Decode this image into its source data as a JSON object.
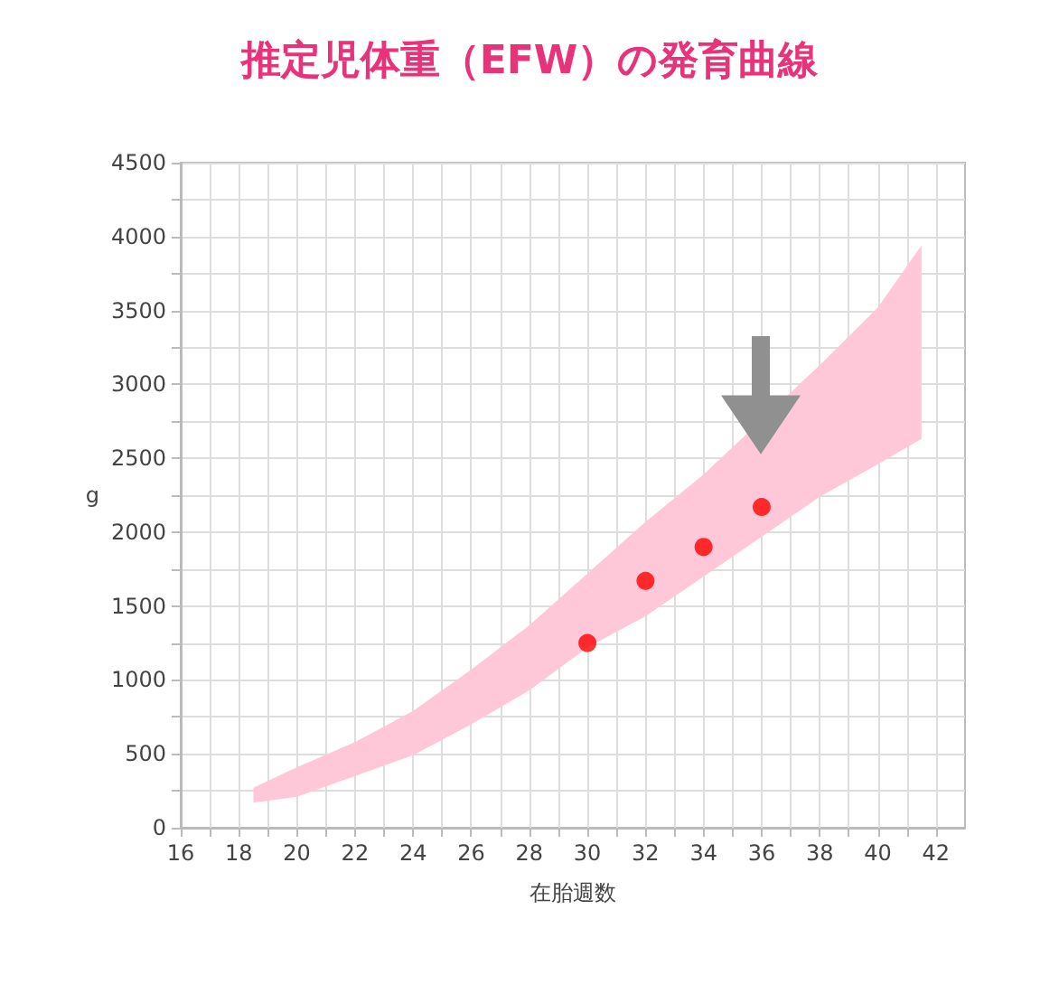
{
  "chart_data": {
    "type": "scatter",
    "title": "推定児体重（EFW）の発育曲線",
    "xlabel": "在胎週数",
    "ylabel": "g",
    "series": [
      {
        "type": "area",
        "color": "#ffc8d8",
        "x": [
          18.5,
          20,
          22,
          24,
          26,
          28,
          30,
          32,
          34,
          38,
          40,
          41.5
        ],
        "values": [
          null,
          null,
          null,
          null,
          null,
          null,
          null,
          null,
          null,
          null,
          null,
          null
        ],
        "lower": [
          170,
          210,
          350,
          490,
          700,
          930,
          1220,
          1430,
          1700,
          2240,
          2460,
          2630
        ],
        "upper": [
          270,
          410,
          580,
          790,
          1070,
          1370,
          1720,
          2070,
          2390,
          3130,
          3520,
          3940
        ]
      },
      {
        "color": "#ff0000",
        "marker": "circle",
        "x": [
          30,
          32,
          34,
          36
        ],
        "values": [
          1250,
          1670,
          1900,
          2170
        ]
      }
    ],
    "grid": true,
    "xlim": [
      16,
      43
    ],
    "xticks": [
      16,
      {
        "value": 17,
        "label": null
      },
      18,
      {
        "value": 19,
        "label": null
      },
      20,
      {
        "value": 21,
        "label": null
      },
      22,
      {
        "value": 23,
        "label": null
      },
      24,
      {
        "value": 25,
        "label": null
      },
      26,
      {
        "value": 27,
        "label": null
      },
      28,
      {
        "value": 29,
        "label": null
      },
      30,
      {
        "value": 31,
        "label": null
      },
      32,
      {
        "value": 33,
        "label": null
      },
      34,
      {
        "value": 35,
        "label": null
      },
      36,
      {
        "value": 37,
        "label": null
      },
      38,
      {
        "value": 39,
        "label": null
      },
      40,
      {
        "value": 41,
        "label": null
      },
      42
    ],
    "ylim": [
      0,
      4500
    ],
    "yticks": [
      0,
      {
        "value": 250,
        "label": null
      },
      500,
      {
        "value": 750,
        "label": null
      },
      1000,
      {
        "value": 1250,
        "label": null
      },
      1500,
      {
        "value": 1750,
        "label": null
      },
      2000,
      {
        "value": 2250,
        "label": null
      },
      2500,
      {
        "value": 2750,
        "label": null
      },
      3000,
      {
        "value": 3250,
        "label": null
      },
      3500,
      {
        "value": 3750,
        "label": null
      },
      4000,
      {
        "value": 4250,
        "label": null
      },
      4500
    ]
  }
}
